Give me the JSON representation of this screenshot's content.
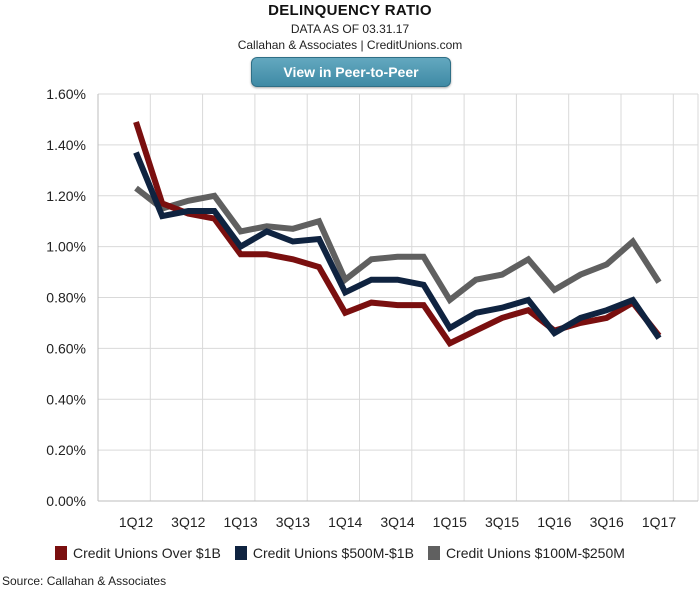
{
  "header": {
    "title": "DELINQUENCY RATIO",
    "subtitle": "DATA AS OF 03.31.17",
    "byline": "Callahan & Associates | CreditUnions.com"
  },
  "button": {
    "label": "View in Peer-to-Peer"
  },
  "source": "Source: Callahan & Associates",
  "chart_data": {
    "type": "line",
    "x": [
      "1Q12",
      "2Q12",
      "3Q12",
      "4Q12",
      "1Q13",
      "2Q13",
      "3Q13",
      "4Q13",
      "1Q14",
      "2Q14",
      "3Q14",
      "4Q14",
      "1Q15",
      "2Q15",
      "3Q15",
      "4Q15",
      "1Q16",
      "2Q16",
      "3Q16",
      "4Q16",
      "1Q17"
    ],
    "x_tick_labels": [
      "1Q12",
      "3Q12",
      "1Q13",
      "3Q13",
      "1Q14",
      "3Q14",
      "1Q15",
      "3Q15",
      "1Q16",
      "3Q16",
      "1Q17"
    ],
    "y_tick_labels": [
      "0.00%",
      "0.20%",
      "0.40%",
      "0.60%",
      "0.80%",
      "1.00%",
      "1.20%",
      "1.40%",
      "1.60%"
    ],
    "ylim": [
      0,
      1.6
    ],
    "y_unit": "%",
    "grid": true,
    "legend_position": "bottom",
    "series": [
      {
        "name": "Credit Unions Over $1B",
        "color": "#7a0f0f",
        "values": [
          1.49,
          1.17,
          1.13,
          1.11,
          0.97,
          0.97,
          0.95,
          0.92,
          0.74,
          0.78,
          0.77,
          0.77,
          0.62,
          0.67,
          0.72,
          0.75,
          0.67,
          0.7,
          0.72,
          0.78,
          0.65
        ]
      },
      {
        "name": "Credit Unions $500M-$1B",
        "color": "#0f2340",
        "values": [
          1.37,
          1.12,
          1.14,
          1.14,
          1.0,
          1.06,
          1.02,
          1.03,
          0.82,
          0.87,
          0.87,
          0.85,
          0.68,
          0.74,
          0.76,
          0.79,
          0.66,
          0.72,
          0.75,
          0.79,
          0.64
        ]
      },
      {
        "name": "Credit Unions $100M-$250M",
        "color": "#606060",
        "values": [
          1.23,
          1.15,
          1.18,
          1.2,
          1.06,
          1.08,
          1.07,
          1.1,
          0.87,
          0.95,
          0.96,
          0.96,
          0.79,
          0.87,
          0.89,
          0.95,
          0.83,
          0.89,
          0.93,
          1.02,
          0.86
        ]
      }
    ]
  }
}
